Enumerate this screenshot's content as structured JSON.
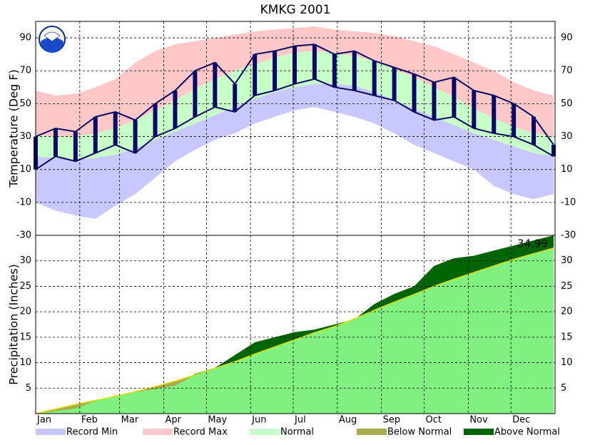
{
  "chart_data": [
    {
      "type": "band",
      "title": "KMKG 2001",
      "y_label": "Temperature (Deg F)",
      "x": [
        1,
        15,
        29,
        43,
        57,
        71,
        85,
        99,
        113,
        127,
        141,
        155,
        169,
        183,
        197,
        211,
        225,
        239,
        253,
        267,
        281,
        295,
        309,
        323,
        337,
        351,
        365
      ],
      "xlim": [
        1,
        366
      ],
      "xticks": [
        {
          "value": 1,
          "label": "Jan"
        },
        {
          "value": 32,
          "label": "Feb"
        },
        {
          "value": 60,
          "label": "Mar"
        },
        {
          "value": 91,
          "label": "Apr"
        },
        {
          "value": 121,
          "label": "May"
        },
        {
          "value": 152,
          "label": "Jun"
        },
        {
          "value": 182,
          "label": "Jul"
        },
        {
          "value": 213,
          "label": "Aug"
        },
        {
          "value": 244,
          "label": "Sep"
        },
        {
          "value": 274,
          "label": "Oct"
        },
        {
          "value": 305,
          "label": "Nov"
        },
        {
          "value": 335,
          "label": "Dec"
        }
      ],
      "ylim": [
        -30,
        100
      ],
      "yticks": [
        -30,
        -10,
        10,
        30,
        50,
        70,
        90
      ],
      "grid": true,
      "series": [
        {
          "name": "Record Max",
          "color": "#ffc8c8",
          "values": [
            58,
            55,
            56,
            60,
            65,
            75,
            82,
            86,
            88,
            90,
            92,
            94,
            95,
            96,
            97,
            95,
            94,
            93,
            91,
            88,
            85,
            80,
            75,
            70,
            63,
            58,
            55
          ]
        },
        {
          "name": "Normal",
          "color": "#c8ffc8",
          "values": [
            31,
            30,
            30,
            32,
            35,
            40,
            46,
            52,
            59,
            65,
            70,
            74,
            78,
            81,
            82,
            81,
            79,
            76,
            71,
            66,
            60,
            54,
            47,
            41,
            36,
            32,
            30
          ],
          "low": [
            18,
            17,
            16,
            17,
            19,
            23,
            28,
            33,
            38,
            43,
            48,
            53,
            57,
            60,
            62,
            62,
            61,
            57,
            52,
            47,
            42,
            37,
            32,
            28,
            24,
            20,
            18
          ]
        },
        {
          "name": "Record Min",
          "color": "#c8c8ff",
          "values": [
            -10,
            -15,
            -18,
            -20,
            -12,
            -5,
            5,
            15,
            22,
            28,
            32,
            38,
            42,
            46,
            48,
            45,
            42,
            38,
            32,
            25,
            20,
            15,
            10,
            0,
            -5,
            -8,
            -5
          ]
        }
      ],
      "actual": {
        "color": "#0a0a64",
        "high": [
          30,
          35,
          33,
          42,
          45,
          40,
          50,
          58,
          70,
          75,
          62,
          80,
          82,
          85,
          86,
          80,
          82,
          76,
          72,
          68,
          63,
          66,
          58,
          55,
          50,
          42,
          25
        ],
        "low": [
          10,
          18,
          15,
          20,
          25,
          20,
          30,
          35,
          42,
          48,
          45,
          55,
          58,
          62,
          65,
          60,
          58,
          55,
          52,
          45,
          40,
          42,
          35,
          32,
          30,
          25,
          18
        ]
      }
    },
    {
      "type": "cumulative",
      "y_label": "Precipitation (Inches)",
      "x": [
        1,
        15,
        29,
        43,
        57,
        71,
        85,
        99,
        113,
        127,
        141,
        155,
        169,
        183,
        197,
        211,
        225,
        239,
        253,
        267,
        281,
        295,
        309,
        323,
        337,
        351,
        365
      ],
      "xlim": [
        1,
        366
      ],
      "ylim": [
        0,
        35
      ],
      "yticks": [
        5,
        10,
        15,
        20,
        25,
        30
      ],
      "grid": true,
      "normal": {
        "name": "Normal",
        "color": "#80f080",
        "line_color": "#e0e000",
        "values": [
          0,
          0.9,
          1.8,
          2.6,
          3.4,
          4.3,
          5.3,
          6.4,
          7.6,
          8.9,
          10.2,
          11.7,
          13.1,
          14.5,
          15.9,
          17.1,
          18.6,
          20.3,
          21.9,
          23.4,
          25.0,
          26.4,
          27.7,
          29.0,
          30.3,
          31.4,
          32.5
        ]
      },
      "actual": {
        "values": [
          0,
          0.5,
          1.0,
          2.5,
          3.5,
          4.2,
          4.8,
          5.5,
          7.8,
          9.0,
          11.5,
          14.0,
          15.0,
          16.0,
          16.5,
          17.5,
          18.5,
          21.5,
          23.5,
          25.0,
          29.0,
          30.5,
          31.0,
          32.0,
          33.0,
          34.0,
          34.99
        ]
      },
      "below": {
        "name": "Below Normal",
        "color": "#aaaa50"
      },
      "above": {
        "name": "Above Normal",
        "color": "#006400"
      },
      "annotation": "34.99"
    }
  ]
}
